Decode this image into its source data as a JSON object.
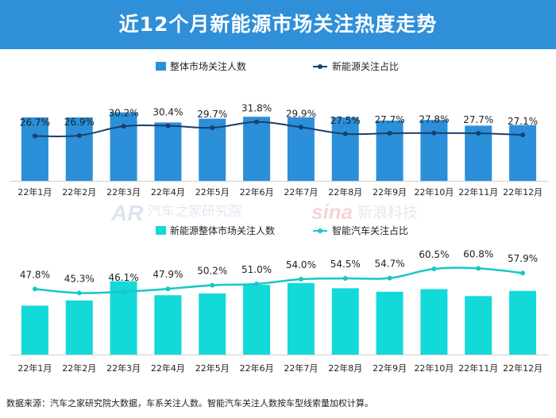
{
  "title": "近12个月新能源市场关注热度走势",
  "source_note": "数据来源：汽车之家研究院大数据，车系关注人数。智能汽车关注人数按车型线索量加权计算。",
  "watermarks": {
    "autohome_logo_text": "AR",
    "autohome": "汽车之家研究院",
    "sina_logo_text": "sina",
    "sina": "新浪科技"
  },
  "colors": {
    "banner": "#2f8fd8",
    "top_bar": "#2b8fd9",
    "top_line": "#1b3e6e",
    "bottom_bar": "#14d9d9",
    "bottom_line": "#18c7c7"
  },
  "chart_data": [
    {
      "type": "bar+line",
      "categories": [
        "22年1月",
        "22年2月",
        "22年3月",
        "22年4月",
        "22年5月",
        "22年6月",
        "22年7月",
        "22年8月",
        "22年9月",
        "22年10月",
        "22年11月",
        "22年12月"
      ],
      "series": [
        {
          "name": "整体市场关注人数",
          "type": "bar",
          "values": [
            100,
            100,
            108,
            92,
            98,
            101,
            100,
            100,
            95,
            96,
            87,
            88
          ]
        },
        {
          "name": "新能源关注占比",
          "type": "line",
          "values": [
            26.7,
            26.9,
            30.2,
            30.4,
            29.7,
            31.8,
            29.9,
            27.5,
            27.7,
            27.8,
            27.7,
            27.1
          ],
          "labels": [
            "26.7%",
            "26.9%",
            "30.2%",
            "30.4%",
            "29.7%",
            "31.8%",
            "29.9%",
            "27.5%",
            "27.7%",
            "27.8%",
            "27.7%",
            "27.1%"
          ]
        }
      ],
      "legend": [
        "整体市场关注人数",
        "新能源关注占比"
      ],
      "legend_position": "top",
      "bar_ylim": [
        0,
        125
      ],
      "line_ylim": [
        20,
        40
      ]
    },
    {
      "type": "bar+line",
      "categories": [
        "22年1月",
        "22年2月",
        "22年3月",
        "22年4月",
        "22年5月",
        "22年6月",
        "22年7月",
        "22年8月",
        "22年9月",
        "22年10月",
        "22年11月",
        "22年12月"
      ],
      "series": [
        {
          "name": "新能源整体市场关注人数",
          "type": "bar",
          "values": [
            56,
            62,
            84,
            68,
            70,
            80,
            82,
            76,
            72,
            75,
            67,
            73
          ]
        },
        {
          "name": "智能汽车关注占比",
          "type": "line",
          "values": [
            47.8,
            45.3,
            46.1,
            47.9,
            50.2,
            51.0,
            54.0,
            54.5,
            54.7,
            60.5,
            60.8,
            57.9
          ],
          "labels": [
            "47.8%",
            "45.3%",
            "46.1%",
            "47.9%",
            "50.2%",
            "51.0%",
            "54.0%",
            "54.5%",
            "54.7%",
            "60.5%",
            "60.8%",
            "57.9%"
          ]
        }
      ],
      "legend": [
        "新能源整体市场关注人数",
        "智能汽车关注占比"
      ],
      "legend_position": "top",
      "bar_ylim": [
        0,
        100
      ],
      "line_ylim": [
        20,
        65
      ]
    }
  ]
}
